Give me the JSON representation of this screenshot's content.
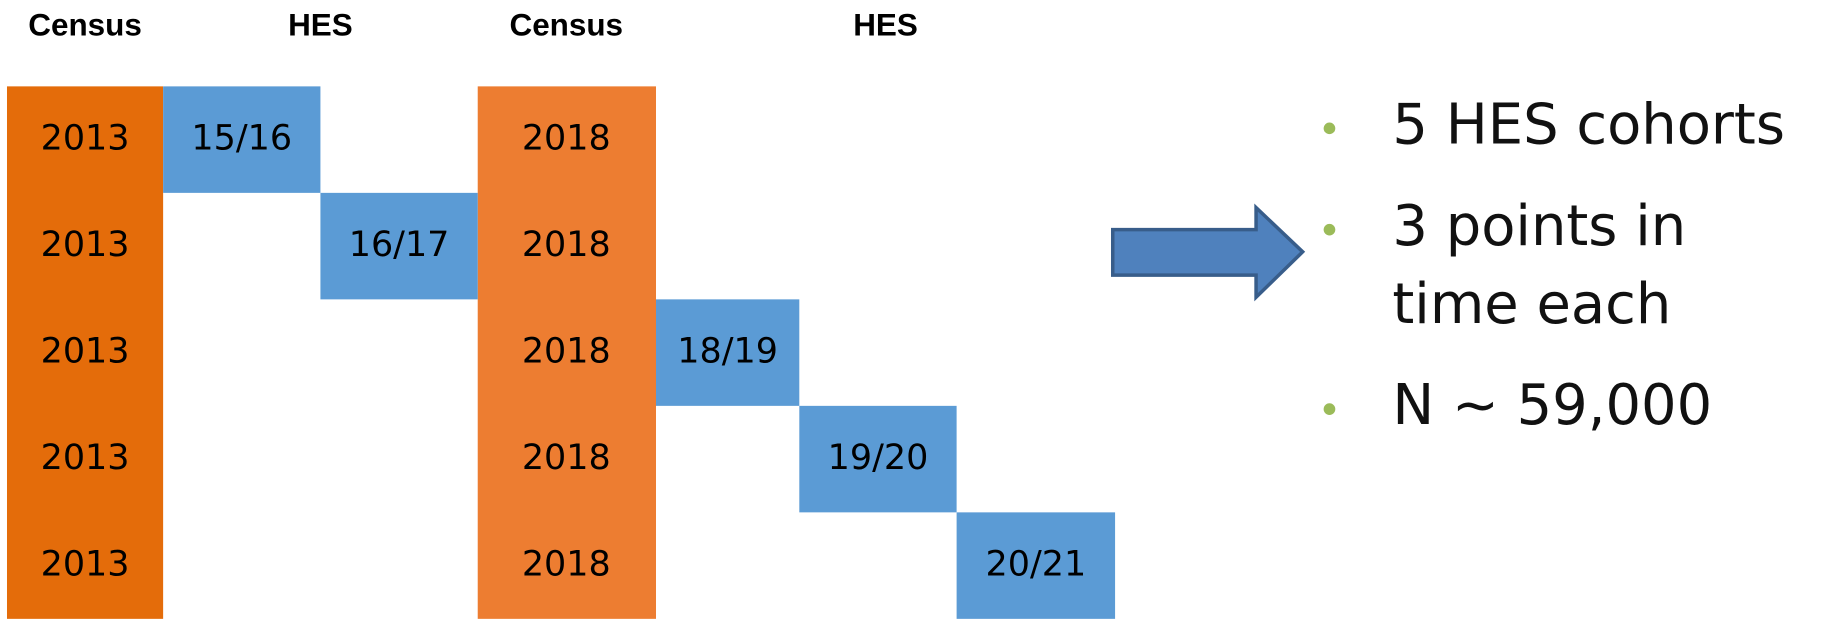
{
  "headers": [
    "Census",
    "HES",
    "Census",
    "HES"
  ],
  "rows": [
    {
      "census_a": "2013",
      "hes": "15/16",
      "census_b": "2018"
    },
    {
      "census_a": "2013",
      "hes": "16/17",
      "census_b": "2018"
    },
    {
      "census_a": "2013",
      "hes": "18/19",
      "census_b": "2018"
    },
    {
      "census_a": "2013",
      "hes": "19/20",
      "census_b": "2018"
    },
    {
      "census_a": "2013",
      "hes": "20/21",
      "census_b": "2018"
    }
  ],
  "bullets": [
    [
      "5 HES cohorts"
    ],
    [
      "3 points in",
      "time each"
    ],
    [
      "N ~ 59,000"
    ]
  ]
}
